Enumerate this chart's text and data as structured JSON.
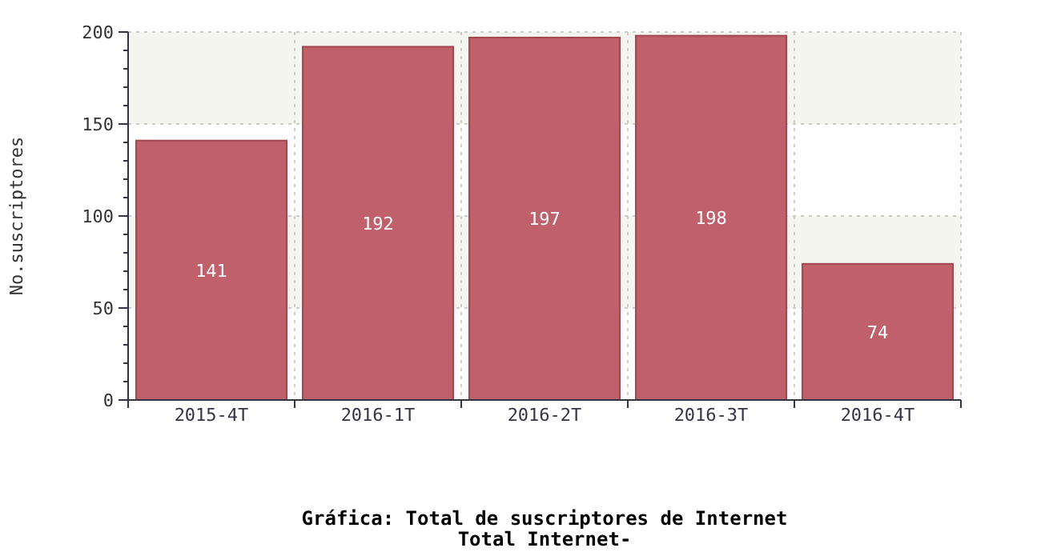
{
  "chart_data": {
    "type": "bar",
    "title": "Gráfica: Total de suscriptores de Internet",
    "subtitle": "Total Internet-",
    "ylabel": "No.suscriptores",
    "categories": [
      "2015-4T",
      "2016-1T",
      "2016-2T",
      "2016-3T",
      "2016-4T"
    ],
    "values": [
      141,
      192,
      197,
      198,
      74
    ],
    "color": "#c0606a",
    "data_labels": true,
    "ylim": [
      0,
      200
    ],
    "yticks": [
      0,
      {
        "value": 10,
        "label": null
      },
      {
        "value": 20,
        "label": null
      },
      {
        "value": 30,
        "label": null
      },
      {
        "value": 40,
        "label": null
      },
      50,
      {
        "value": 60,
        "label": null
      },
      {
        "value": 70,
        "label": null
      },
      {
        "value": 80,
        "label": null
      },
      {
        "value": 90,
        "label": null
      },
      100,
      {
        "value": 110,
        "label": null
      },
      {
        "value": 120,
        "label": null
      },
      {
        "value": 130,
        "label": null
      },
      {
        "value": 140,
        "label": null
      },
      150,
      {
        "value": 160,
        "label": null
      },
      {
        "value": 170,
        "label": null
      },
      {
        "value": 180,
        "label": null
      },
      {
        "value": 190,
        "label": null
      },
      200
    ],
    "bands": [
      {
        "axis": "y",
        "from": 50,
        "to": 100,
        "color": "#f5f5f0"
      },
      {
        "axis": "y",
        "from": 150,
        "to": 200,
        "color": "#f5f5f0"
      }
    ],
    "grid": true
  }
}
